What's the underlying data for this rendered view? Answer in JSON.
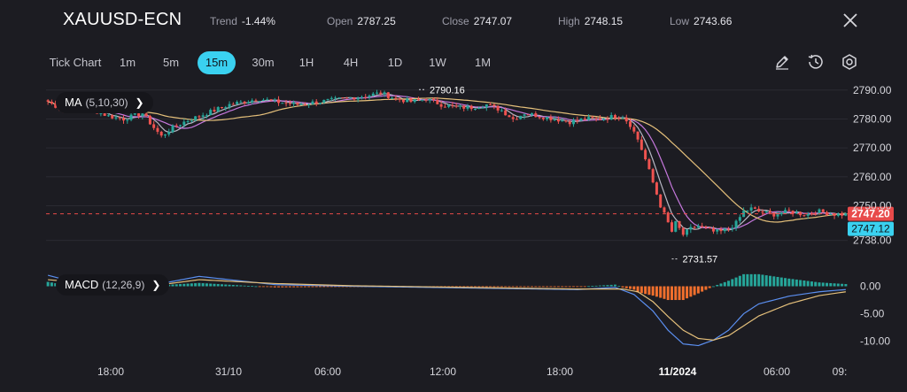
{
  "header": {
    "symbol": "XAUUSD-ECN",
    "stats": [
      {
        "key": "Trend",
        "value": "-1.44%"
      },
      {
        "key": "Open",
        "value": "2787.25"
      },
      {
        "key": "Close",
        "value": "2747.07"
      },
      {
        "key": "High",
        "value": "2748.15"
      },
      {
        "key": "Low",
        "value": "2743.66"
      }
    ]
  },
  "timeframes": {
    "items": [
      "Tick Chart",
      "1m",
      "5m",
      "15m",
      "30m",
      "1H",
      "4H",
      "1D",
      "1W",
      "1M"
    ],
    "selected": "15m"
  },
  "tools": [
    "pencil-icon",
    "history-icon",
    "settings-icon"
  ],
  "colors": {
    "up": "#26a69a",
    "down": "#ef5350",
    "ma5": "#b8b8c4",
    "ma10": "#c678dd",
    "ma30": "#e5c07b",
    "dif": "#5b8ff0",
    "dea": "#e5c07b",
    "price_tag": "#e84a4a",
    "current_tag": "#3ad1f0"
  },
  "chart_data": [
    {
      "type": "candlestick",
      "indicator": {
        "name": "MA",
        "params": "(5,10,30)"
      },
      "y_ticks": [
        "2790.00",
        "2780.00",
        "2770.00",
        "2760.00",
        "2750.00",
        "2738.00"
      ],
      "x_ticks": [
        "18:00",
        "31/10",
        "06:00",
        "12:00",
        "18:00",
        "11/2024",
        "06:00",
        "09:"
      ],
      "ylim": [
        2733,
        2793
      ],
      "annotations": {
        "max_label": "2790.16",
        "min_label": "2731.57"
      },
      "price_tag": "2747.20",
      "current_tag": "2747.12",
      "reference_line": 2747.2,
      "close_path": [
        [
          0,
          2786
        ],
        [
          4,
          2783
        ],
        [
          8,
          2784
        ],
        [
          12,
          2783
        ],
        [
          16,
          2781
        ],
        [
          20,
          2780
        ],
        [
          25,
          2782
        ],
        [
          28,
          2777
        ],
        [
          30,
          2774
        ],
        [
          33,
          2777
        ],
        [
          36,
          2779
        ],
        [
          40,
          2781
        ],
        [
          44,
          2783
        ],
        [
          48,
          2785
        ],
        [
          52,
          2786
        ],
        [
          56,
          2787
        ],
        [
          60,
          2786
        ],
        [
          66,
          2785
        ],
        [
          72,
          2786
        ],
        [
          78,
          2787
        ],
        [
          84,
          2788
        ],
        [
          88,
          2789
        ],
        [
          92,
          2787
        ],
        [
          96,
          2786
        ],
        [
          100,
          2787
        ],
        [
          104,
          2785
        ],
        [
          108,
          2784
        ],
        [
          112,
          2784
        ],
        [
          116,
          2785
        ],
        [
          120,
          2783
        ],
        [
          123,
          2780
        ],
        [
          126,
          2782
        ],
        [
          130,
          2781
        ],
        [
          134,
          2780
        ],
        [
          138,
          2779
        ],
        [
          142,
          2780
        ],
        [
          146,
          2780
        ],
        [
          150,
          2781
        ],
        [
          152,
          2781
        ],
        [
          154,
          2778
        ],
        [
          156,
          2773
        ],
        [
          158,
          2766
        ],
        [
          160,
          2758
        ],
        [
          162,
          2750
        ],
        [
          164,
          2744
        ],
        [
          165,
          2741
        ],
        [
          166,
          2744
        ],
        [
          168,
          2740
        ],
        [
          170,
          2742
        ],
        [
          172,
          2743
        ],
        [
          174,
          2742
        ],
        [
          176,
          2741
        ],
        [
          178,
          2741
        ],
        [
          180,
          2742
        ],
        [
          182,
          2744
        ],
        [
          184,
          2748
        ],
        [
          186,
          2749
        ],
        [
          188,
          2748
        ],
        [
          192,
          2747
        ],
        [
          196,
          2748
        ],
        [
          200,
          2747
        ],
        [
          204,
          2748
        ],
        [
          208,
          2747
        ],
        [
          211,
          2747
        ]
      ]
    },
    {
      "type": "macd",
      "indicator": {
        "name": "MACD",
        "params": "(12,26,9)"
      },
      "y_ticks": [
        "0.00",
        "-5.00",
        "-10.00"
      ],
      "ylim": [
        -12,
        2.5
      ],
      "dif_path": [
        [
          0,
          2
        ],
        [
          10,
          0.2
        ],
        [
          20,
          -1
        ],
        [
          30,
          0.5
        ],
        [
          40,
          1.8
        ],
        [
          60,
          0.3
        ],
        [
          80,
          0
        ],
        [
          100,
          -0.2
        ],
        [
          120,
          -0.4
        ],
        [
          140,
          -0.6
        ],
        [
          150,
          -0.2
        ],
        [
          155,
          -1.5
        ],
        [
          160,
          -4.5
        ],
        [
          164,
          -8
        ],
        [
          168,
          -10.5
        ],
        [
          172,
          -10.8
        ],
        [
          176,
          -9.8
        ],
        [
          180,
          -8
        ],
        [
          184,
          -5
        ],
        [
          188,
          -3.2
        ],
        [
          196,
          -1.8
        ],
        [
          204,
          -1
        ],
        [
          211,
          -0.6
        ]
      ],
      "dea_path": [
        [
          0,
          1.2
        ],
        [
          10,
          0.6
        ],
        [
          20,
          -0.2
        ],
        [
          30,
          0.3
        ],
        [
          40,
          1.2
        ],
        [
          60,
          0.5
        ],
        [
          80,
          0.1
        ],
        [
          100,
          -0.1
        ],
        [
          120,
          -0.3
        ],
        [
          140,
          -0.5
        ],
        [
          152,
          -0.5
        ],
        [
          156,
          -1
        ],
        [
          160,
          -2.8
        ],
        [
          164,
          -5.5
        ],
        [
          168,
          -8
        ],
        [
          172,
          -9.5
        ],
        [
          176,
          -9.8
        ],
        [
          180,
          -9
        ],
        [
          184,
          -7.2
        ],
        [
          188,
          -5.4
        ],
        [
          196,
          -3.2
        ],
        [
          204,
          -1.7
        ],
        [
          211,
          -1
        ]
      ]
    }
  ]
}
